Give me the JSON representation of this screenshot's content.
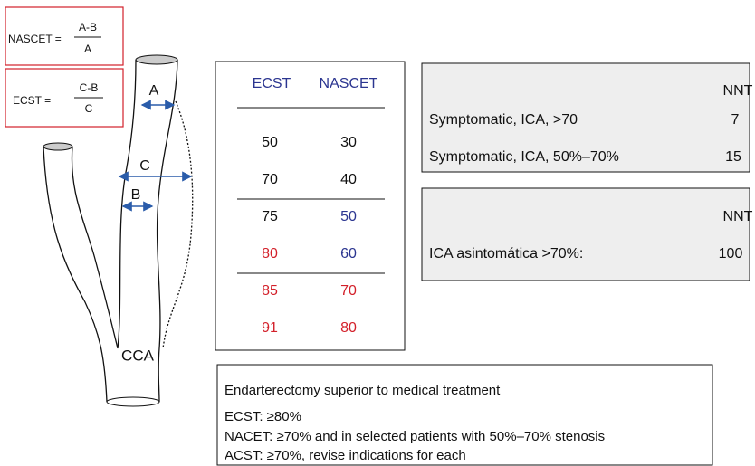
{
  "formulas": [
    {
      "label": "NASCET =",
      "numerator": "A-B",
      "denominator": "A"
    },
    {
      "label": "ECST =",
      "numerator": "C-B",
      "denominator": "C"
    }
  ],
  "diagram": {
    "labels": [
      "A",
      "C",
      "B",
      "CCA"
    ]
  },
  "table": {
    "header": [
      "ECST",
      "NASCET"
    ],
    "rows": [
      [
        50,
        30
      ],
      [
        70,
        40
      ],
      [
        75,
        50
      ],
      [
        80,
        60
      ],
      [
        85,
        70
      ],
      [
        91,
        80
      ]
    ]
  },
  "nnt_boxes": [
    {
      "header": "NNT",
      "rows": [
        [
          "Symptomatic, ICA, >70",
          7
        ],
        [
          "Symptomatic, ICA, 50%–70%",
          15
        ]
      ]
    },
    {
      "header": "NNT",
      "rows": [
        [
          "ICA asintomática >70%:",
          100
        ]
      ]
    }
  ],
  "note": {
    "title": "Endarterectomy superior to medical treatment",
    "lines": [
      "ECST: ≥80%",
      "NACET: ≥70% and in selected patients with 50%–70% stenosis",
      "ACST: ≥70%, revise indications for each"
    ]
  }
}
